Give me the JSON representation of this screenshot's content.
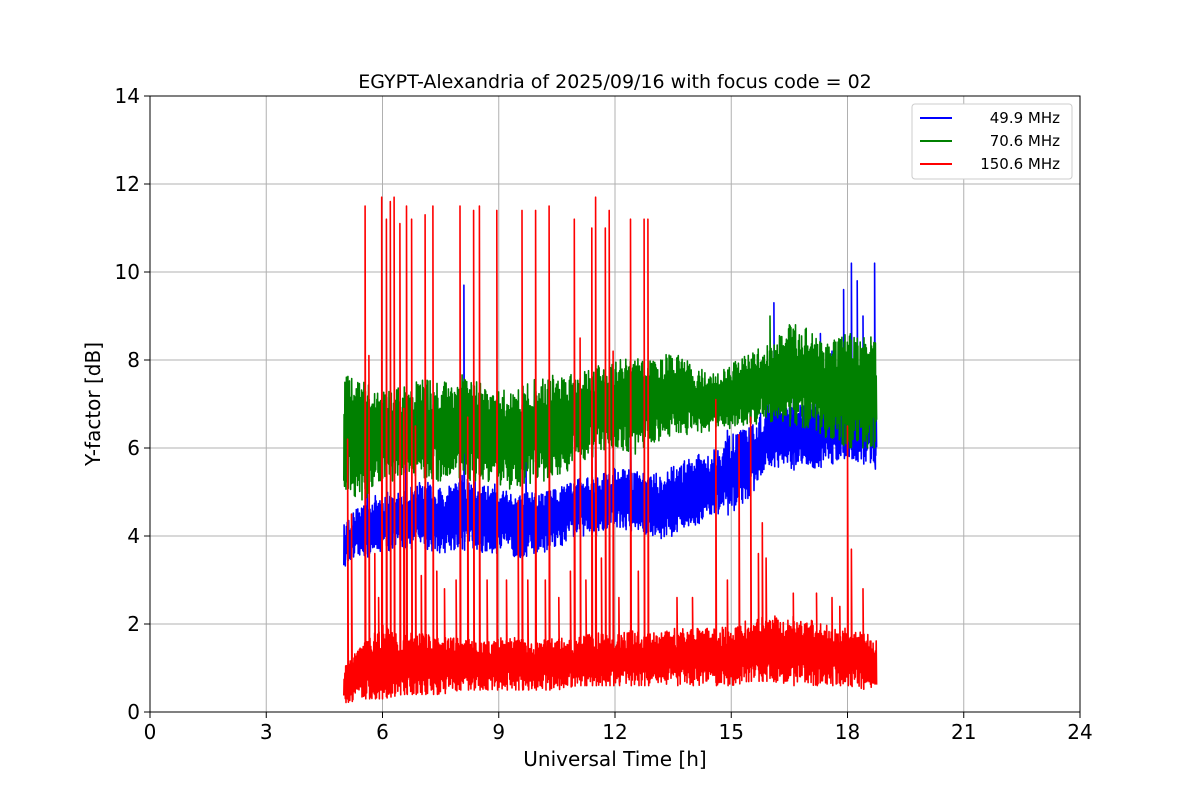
{
  "chart_data": {
    "type": "line",
    "title": "EGYPT-Alexandria of 2025/09/16 with focus code = 02",
    "xlabel": "Universal Time [h]",
    "ylabel": "Y-factor [dB]",
    "xlim": [
      0,
      24
    ],
    "ylim": [
      0,
      14
    ],
    "xticks": [
      0,
      3,
      6,
      9,
      12,
      15,
      18,
      21,
      24
    ],
    "yticks": [
      0,
      2,
      4,
      6,
      8,
      10,
      12,
      14
    ],
    "grid": true,
    "legend_position": "top-right",
    "series": [
      {
        "name": "49.9 MHz",
        "color": "#0000ff",
        "x": [
          5.0,
          5.5,
          6.0,
          6.5,
          7.0,
          7.5,
          8.0,
          8.5,
          9.0,
          9.5,
          10.0,
          10.5,
          11.0,
          11.5,
          12.0,
          12.5,
          13.0,
          13.5,
          14.0,
          14.5,
          15.0,
          15.5,
          16.0,
          16.5,
          17.0,
          17.5,
          18.0,
          18.5,
          18.75
        ],
        "y_low": [
          3.3,
          3.5,
          3.6,
          3.7,
          3.7,
          3.6,
          3.7,
          3.6,
          3.6,
          3.5,
          3.6,
          3.7,
          4.0,
          4.0,
          4.2,
          4.1,
          3.9,
          4.0,
          4.2,
          4.4,
          4.5,
          4.9,
          5.6,
          5.5,
          5.5,
          5.6,
          5.8,
          5.6,
          5.5
        ],
        "y_high": [
          4.3,
          4.8,
          5.0,
          5.0,
          5.3,
          5.1,
          5.4,
          5.2,
          5.2,
          5.0,
          5.0,
          5.1,
          5.3,
          5.4,
          5.6,
          5.5,
          5.4,
          5.6,
          5.8,
          6.0,
          6.3,
          6.5,
          7.1,
          7.0,
          7.0,
          7.3,
          7.5,
          7.8,
          7.3
        ],
        "spikes": [
          [
            5.6,
            5.8
          ],
          [
            6.6,
            6.3
          ],
          [
            8.1,
            9.7
          ],
          [
            9.7,
            6.2
          ],
          [
            11.5,
            6.3
          ],
          [
            12.4,
            7.1
          ],
          [
            14.9,
            6.4
          ],
          [
            16.1,
            9.3
          ],
          [
            16.6,
            7.3
          ],
          [
            17.3,
            8.6
          ],
          [
            17.6,
            8.2
          ],
          [
            17.9,
            9.6
          ],
          [
            18.1,
            10.2
          ],
          [
            18.25,
            9.8
          ],
          [
            18.4,
            9.0
          ],
          [
            18.7,
            10.2
          ]
        ]
      },
      {
        "name": "70.6 MHz",
        "color": "#008000",
        "x": [
          5.0,
          5.5,
          6.0,
          6.5,
          7.0,
          7.5,
          8.0,
          8.5,
          9.0,
          9.5,
          10.0,
          10.5,
          11.0,
          11.5,
          12.0,
          12.5,
          13.0,
          13.5,
          14.0,
          14.5,
          15.0,
          15.5,
          16.0,
          16.5,
          17.0,
          17.5,
          18.0,
          18.5,
          18.75
        ],
        "y_low": [
          5.0,
          4.8,
          5.2,
          5.3,
          5.3,
          5.2,
          5.3,
          5.2,
          5.0,
          5.1,
          5.2,
          5.3,
          5.6,
          5.8,
          6.0,
          5.8,
          6.1,
          6.3,
          6.3,
          6.4,
          6.4,
          6.5,
          6.6,
          6.5,
          6.4,
          6.2,
          6.0,
          6.0,
          5.8
        ],
        "y_high": [
          7.7,
          7.5,
          7.3,
          7.4,
          7.6,
          7.5,
          7.7,
          7.5,
          7.3,
          7.4,
          7.6,
          7.7,
          7.8,
          7.9,
          8.0,
          8.1,
          8.0,
          8.2,
          7.9,
          7.7,
          7.9,
          8.2,
          8.4,
          8.8,
          8.8,
          8.5,
          8.6,
          8.6,
          8.5
        ],
        "spikes": [
          [
            16.0,
            9.0
          ],
          [
            16.5,
            8.8
          ]
        ]
      },
      {
        "name": "150.6 MHz",
        "color": "#ff0000",
        "x": [
          5.0,
          5.5,
          6.0,
          6.5,
          7.0,
          7.5,
          8.0,
          8.5,
          9.0,
          9.5,
          10.0,
          10.5,
          11.0,
          11.5,
          12.0,
          12.5,
          13.0,
          13.5,
          14.0,
          14.5,
          15.0,
          15.5,
          16.0,
          16.5,
          17.0,
          17.5,
          18.0,
          18.5,
          18.75
        ],
        "y_low": [
          0.2,
          0.3,
          0.3,
          0.4,
          0.4,
          0.4,
          0.5,
          0.5,
          0.5,
          0.5,
          0.5,
          0.5,
          0.6,
          0.6,
          0.6,
          0.6,
          0.6,
          0.6,
          0.6,
          0.6,
          0.6,
          0.7,
          0.7,
          0.6,
          0.6,
          0.6,
          0.6,
          0.5,
          0.6
        ],
        "y_high": [
          1.0,
          1.6,
          2.0,
          1.8,
          1.8,
          1.7,
          1.7,
          1.6,
          1.7,
          1.7,
          1.6,
          1.7,
          1.7,
          1.8,
          1.8,
          1.9,
          1.8,
          1.9,
          1.9,
          1.9,
          2.0,
          2.1,
          2.2,
          2.2,
          2.1,
          2.0,
          1.9,
          1.8,
          1.7
        ],
        "spikes": [
          [
            5.1,
            6.2
          ],
          [
            5.2,
            4.5
          ],
          [
            5.55,
            11.5
          ],
          [
            5.65,
            8.1
          ],
          [
            5.8,
            3.6
          ],
          [
            5.9,
            2.6
          ],
          [
            5.98,
            11.7
          ],
          [
            6.1,
            11.2
          ],
          [
            6.2,
            11.6
          ],
          [
            6.3,
            11.7
          ],
          [
            6.45,
            11.1
          ],
          [
            6.55,
            6.9
          ],
          [
            6.62,
            11.5
          ],
          [
            6.75,
            11.2
          ],
          [
            6.85,
            6.5
          ],
          [
            7.0,
            3.1
          ],
          [
            7.1,
            11.3
          ],
          [
            7.3,
            11.5
          ],
          [
            7.4,
            3.2
          ],
          [
            7.6,
            2.8
          ],
          [
            7.9,
            3.0
          ],
          [
            8.0,
            11.5
          ],
          [
            8.2,
            6.7
          ],
          [
            8.35,
            11.4
          ],
          [
            8.5,
            11.5
          ],
          [
            8.7,
            3.0
          ],
          [
            8.95,
            11.4
          ],
          [
            9.2,
            3.0
          ],
          [
            9.5,
            4.8
          ],
          [
            9.6,
            11.4
          ],
          [
            9.75,
            3.0
          ],
          [
            9.95,
            11.4
          ],
          [
            10.2,
            3.0
          ],
          [
            10.3,
            11.5
          ],
          [
            10.55,
            2.6
          ],
          [
            10.85,
            3.2
          ],
          [
            10.95,
            11.2
          ],
          [
            11.1,
            8.5
          ],
          [
            11.25,
            3.0
          ],
          [
            11.4,
            11.0
          ],
          [
            11.5,
            11.7
          ],
          [
            11.65,
            3.5
          ],
          [
            11.75,
            11.0
          ],
          [
            11.85,
            11.4
          ],
          [
            11.95,
            8.2
          ],
          [
            12.1,
            2.6
          ],
          [
            12.4,
            11.2
          ],
          [
            12.6,
            3.2
          ],
          [
            12.75,
            11.2
          ],
          [
            12.85,
            11.2
          ],
          [
            13.6,
            2.6
          ],
          [
            14.0,
            2.6
          ],
          [
            14.6,
            7.1
          ],
          [
            14.9,
            3.0
          ],
          [
            15.2,
            6.3
          ],
          [
            15.5,
            6.7
          ],
          [
            15.7,
            3.6
          ],
          [
            15.8,
            4.3
          ],
          [
            15.9,
            3.5
          ],
          [
            16.6,
            2.7
          ],
          [
            17.2,
            2.7
          ],
          [
            17.6,
            2.6
          ],
          [
            17.8,
            2.4
          ],
          [
            18.0,
            6.5
          ],
          [
            18.1,
            3.7
          ],
          [
            18.4,
            2.8
          ]
        ]
      }
    ]
  }
}
